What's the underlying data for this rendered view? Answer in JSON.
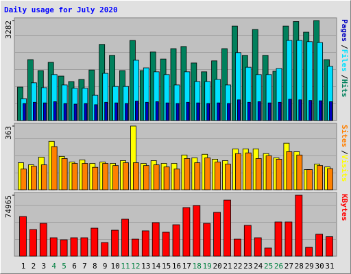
{
  "chart_data": [
    {
      "type": "bar",
      "title": "Daily usage for July 2020",
      "ylim": [
        0,
        3282
      ],
      "yticks": [
        3282
      ],
      "legend_separator": "/",
      "series": [
        {
          "name": "Hits",
          "color": "#00805c",
          "values": [
            1100,
            2000,
            1640,
            1910,
            1460,
            1280,
            1350,
            1660,
            2500,
            2140,
            1640,
            2630,
            1640,
            2250,
            2020,
            2360,
            2430,
            1890,
            1600,
            1960,
            2360,
            3100,
            2140,
            2990,
            2140,
            1620,
            3100,
            3250,
            2900,
            3282,
            2000
          ]
        },
        {
          "name": "Files",
          "color": "#00e0ff",
          "values": [
            720,
            1240,
            1080,
            1510,
            1170,
            1060,
            1060,
            830,
            1550,
            1120,
            1120,
            1980,
            1730,
            1600,
            1510,
            1170,
            1600,
            1280,
            1280,
            1350,
            1170,
            2230,
            1750,
            1510,
            1510,
            1710,
            2630,
            2630,
            2590,
            2560,
            1780
          ]
        },
        {
          "name": "Pages",
          "color": "#0000c0",
          "values": [
            560,
            600,
            580,
            620,
            560,
            540,
            560,
            520,
            600,
            580,
            560,
            640,
            600,
            620,
            580,
            560,
            600,
            580,
            560,
            580,
            560,
            680,
            600,
            620,
            580,
            600,
            700,
            680,
            660,
            650,
            620
          ]
        }
      ]
    },
    {
      "type": "bar",
      "ylim": [
        0,
        363
      ],
      "yticks": [
        363
      ],
      "legend_separator": "/",
      "series": [
        {
          "name": "Visits",
          "color": "#ffff00",
          "values": [
            154,
            142,
            186,
            276,
            190,
            158,
            170,
            150,
            158,
            150,
            166,
            363,
            150,
            166,
            150,
            150,
            198,
            182,
            202,
            174,
            166,
            233,
            233,
            233,
            206,
            182,
            265,
            217,
            115,
            146,
            130
          ]
        },
        {
          "name": "Sites",
          "color": "#ff8000",
          "values": [
            118,
            134,
            142,
            246,
            178,
            150,
            150,
            128,
            150,
            138,
            154,
            154,
            138,
            142,
            130,
            118,
            178,
            154,
            182,
            158,
            146,
            206,
            210,
            178,
            194,
            174,
            217,
            198,
            115,
            138,
            120
          ]
        }
      ]
    },
    {
      "type": "bar",
      "ylim": [
        0,
        74965
      ],
      "yticks": [
        74965
      ],
      "categories": [
        "1",
        "2",
        "3",
        "4",
        "5",
        "6",
        "7",
        "8",
        "9",
        "10",
        "11",
        "12",
        "13",
        "14",
        "15",
        "16",
        "17",
        "18",
        "19",
        "20",
        "21",
        "22",
        "23",
        "24",
        "25",
        "26",
        "27",
        "28",
        "29",
        "30",
        "31"
      ],
      "category_colors": [
        "#000000",
        "#000000",
        "#000000",
        "#008040",
        "#008040",
        "#000000",
        "#000000",
        "#000000",
        "#000000",
        "#000000",
        "#008040",
        "#008040",
        "#000000",
        "#000000",
        "#000000",
        "#000000",
        "#000000",
        "#008040",
        "#008040",
        "#000000",
        "#000000",
        "#000000",
        "#000000",
        "#000000",
        "#008040",
        "#008040",
        "#000000",
        "#000000",
        "#000000",
        "#000000",
        "#000000"
      ],
      "series": [
        {
          "name": "KBytes",
          "color": "#ff0000",
          "values": [
            48800,
            32800,
            40400,
            22700,
            20200,
            22700,
            22700,
            34500,
            16800,
            32000,
            45500,
            21000,
            31200,
            41300,
            29500,
            38700,
            59800,
            62300,
            40400,
            53900,
            69000,
            21000,
            37900,
            22700,
            10100,
            42100,
            42100,
            74965,
            10900,
            27000,
            24000
          ]
        }
      ]
    }
  ]
}
